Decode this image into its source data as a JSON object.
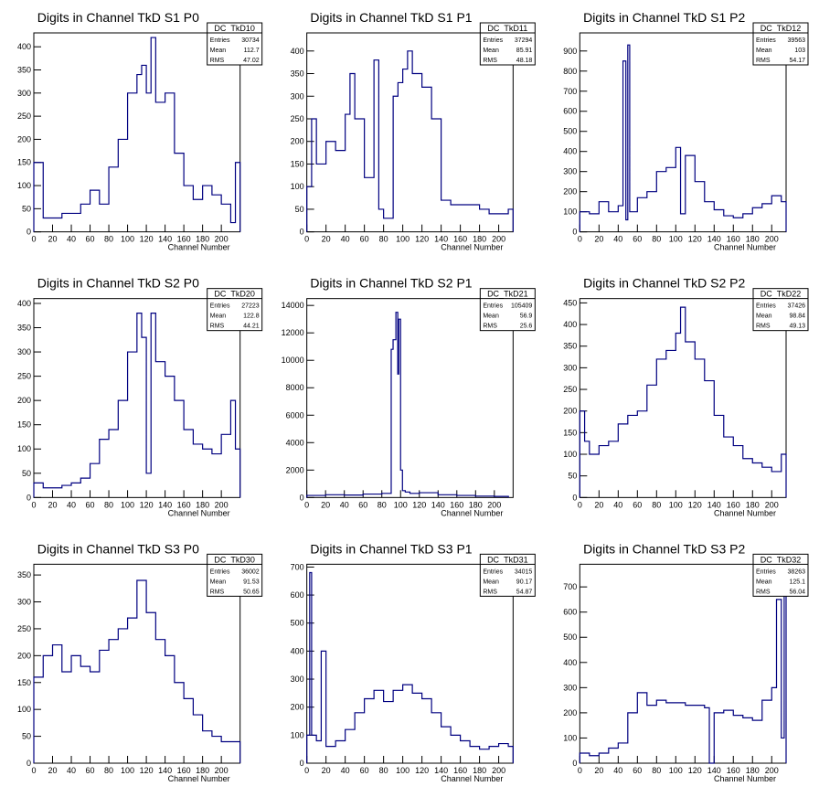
{
  "chart_data": [
    {
      "type": "histogram",
      "title": "Digits in Channel TkD S1 P0",
      "xlabel": "Channel Number",
      "ylabel": "",
      "xlim": [
        0,
        220
      ],
      "ylim": [
        0,
        430
      ],
      "xticks": [
        0,
        20,
        40,
        60,
        80,
        100,
        120,
        140,
        160,
        180,
        200
      ],
      "yticks": [
        0,
        50,
        100,
        150,
        200,
        250,
        300,
        350,
        400
      ],
      "stats": {
        "name": "DC_TkD10",
        "entries": "30734",
        "mean": "112.7",
        "rms": "47.02"
      },
      "x": [
        0,
        10,
        20,
        30,
        40,
        50,
        60,
        70,
        80,
        90,
        100,
        110,
        115,
        120,
        125,
        130,
        140,
        150,
        160,
        170,
        180,
        190,
        200,
        210,
        215,
        220
      ],
      "y": [
        150,
        30,
        30,
        40,
        40,
        60,
        90,
        60,
        140,
        200,
        300,
        340,
        360,
        300,
        420,
        280,
        300,
        170,
        100,
        70,
        100,
        80,
        60,
        20,
        150,
        0
      ]
    },
    {
      "type": "histogram",
      "title": "Digits in Channel TkD S1 P1",
      "xlabel": "Channel Number",
      "ylabel": "",
      "xlim": [
        0,
        215
      ],
      "ylim": [
        0,
        440
      ],
      "xticks": [
        0,
        20,
        40,
        60,
        80,
        100,
        120,
        140,
        160,
        180,
        200
      ],
      "yticks": [
        0,
        50,
        100,
        150,
        200,
        250,
        300,
        350,
        400
      ],
      "stats": {
        "name": "DC_TkD11",
        "entries": "37294",
        "mean": "85.91",
        "rms": "48.18"
      },
      "x": [
        0,
        5,
        10,
        20,
        30,
        40,
        45,
        50,
        60,
        70,
        75,
        80,
        90,
        95,
        100,
        105,
        110,
        120,
        130,
        140,
        150,
        160,
        170,
        180,
        190,
        200,
        210,
        215
      ],
      "y": [
        100,
        250,
        150,
        200,
        180,
        260,
        350,
        250,
        120,
        380,
        50,
        30,
        300,
        330,
        360,
        400,
        350,
        320,
        250,
        70,
        60,
        60,
        60,
        50,
        40,
        40,
        50,
        0
      ]
    },
    {
      "type": "histogram",
      "title": "Digits in Channel TkD S1 P2",
      "xlabel": "Channel Number",
      "ylabel": "",
      "xlim": [
        0,
        215
      ],
      "ylim": [
        0,
        990
      ],
      "xticks": [
        0,
        20,
        40,
        60,
        80,
        100,
        120,
        140,
        160,
        180,
        200
      ],
      "yticks": [
        0,
        100,
        200,
        300,
        400,
        500,
        600,
        700,
        800,
        900
      ],
      "stats": {
        "name": "DC_TkD12",
        "entries": "39563",
        "mean": "103",
        "rms": "54.17"
      },
      "x": [
        0,
        10,
        20,
        30,
        40,
        45,
        48,
        50,
        52,
        55,
        60,
        70,
        80,
        90,
        100,
        105,
        110,
        120,
        130,
        140,
        150,
        160,
        170,
        180,
        190,
        200,
        210,
        215
      ],
      "y": [
        100,
        90,
        150,
        100,
        130,
        850,
        60,
        930,
        100,
        100,
        170,
        200,
        300,
        320,
        420,
        90,
        380,
        250,
        150,
        110,
        80,
        70,
        90,
        120,
        140,
        180,
        150,
        0
      ]
    },
    {
      "type": "histogram",
      "title": "Digits in Channel TkD S2 P0",
      "xlabel": "Channel Number",
      "ylabel": "",
      "xlim": [
        0,
        220
      ],
      "ylim": [
        0,
        410
      ],
      "xticks": [
        0,
        20,
        40,
        60,
        80,
        100,
        120,
        140,
        160,
        180,
        200
      ],
      "yticks": [
        0,
        50,
        100,
        150,
        200,
        250,
        300,
        350,
        400
      ],
      "stats": {
        "name": "DC_TkD20",
        "entries": "27223",
        "mean": "122.8",
        "rms": "44.21"
      },
      "x": [
        0,
        10,
        20,
        30,
        40,
        50,
        60,
        70,
        80,
        90,
        100,
        110,
        115,
        120,
        125,
        130,
        140,
        150,
        160,
        170,
        180,
        190,
        200,
        210,
        215,
        220
      ],
      "y": [
        30,
        20,
        20,
        25,
        30,
        40,
        70,
        120,
        140,
        200,
        300,
        380,
        330,
        50,
        380,
        280,
        250,
        200,
        140,
        110,
        100,
        90,
        130,
        200,
        100,
        0
      ]
    },
    {
      "type": "histogram",
      "title": "Digits in Channel TkD S2 P1",
      "xlabel": "Channel Number",
      "ylabel": "",
      "xlim": [
        0,
        220
      ],
      "ylim": [
        0,
        14500
      ],
      "xticks": [
        0,
        20,
        40,
        60,
        80,
        100,
        120,
        140,
        160,
        180,
        200
      ],
      "yticks": [
        0,
        2000,
        4000,
        6000,
        8000,
        10000,
        12000,
        14000
      ],
      "stats": {
        "name": "DC_TkD21",
        "entries": "105409",
        "mean": "56.9",
        "rms": "25.6"
      },
      "x": [
        0,
        20,
        40,
        60,
        80,
        85,
        90,
        92,
        95,
        97,
        98,
        100,
        102,
        105,
        110,
        120,
        140,
        160,
        180,
        200,
        215
      ],
      "y": [
        150,
        200,
        180,
        250,
        300,
        300,
        10800,
        11500,
        13500,
        9000,
        13000,
        2000,
        500,
        400,
        300,
        350,
        200,
        150,
        100,
        80,
        0
      ]
    },
    {
      "type": "histogram",
      "title": "Digits in Channel TkD S2 P2",
      "xlabel": "Channel Number",
      "ylabel": "",
      "xlim": [
        0,
        215
      ],
      "ylim": [
        0,
        460
      ],
      "xticks": [
        0,
        20,
        40,
        60,
        80,
        100,
        120,
        140,
        160,
        180,
        200
      ],
      "yticks": [
        0,
        50,
        100,
        150,
        200,
        250,
        300,
        350,
        400,
        450
      ],
      "stats": {
        "name": "DC_TkD22",
        "entries": "37426",
        "mean": "98.84",
        "rms": "49.13"
      },
      "x": [
        0,
        5,
        10,
        20,
        30,
        40,
        50,
        60,
        70,
        80,
        90,
        100,
        105,
        110,
        120,
        130,
        140,
        150,
        160,
        170,
        180,
        190,
        200,
        210,
        215
      ],
      "y": [
        200,
        130,
        100,
        120,
        130,
        170,
        190,
        200,
        260,
        320,
        340,
        380,
        440,
        360,
        320,
        270,
        190,
        140,
        120,
        90,
        80,
        70,
        60,
        100,
        0
      ]
    },
    {
      "type": "histogram",
      "title": "Digits in Channel TkD S3 P0",
      "xlabel": "Channel Number",
      "ylabel": "",
      "xlim": [
        0,
        220
      ],
      "ylim": [
        0,
        370
      ],
      "xticks": [
        0,
        20,
        40,
        60,
        80,
        100,
        120,
        140,
        160,
        180,
        200
      ],
      "yticks": [
        0,
        50,
        100,
        150,
        200,
        250,
        300,
        350
      ],
      "stats": {
        "name": "DC_TkD30",
        "entries": "36002",
        "mean": "91.53",
        "rms": "50.65"
      },
      "x": [
        0,
        10,
        20,
        30,
        40,
        50,
        60,
        70,
        80,
        90,
        100,
        110,
        120,
        130,
        140,
        150,
        160,
        170,
        180,
        190,
        200,
        210,
        220
      ],
      "y": [
        160,
        200,
        220,
        170,
        200,
        180,
        170,
        210,
        230,
        250,
        270,
        340,
        280,
        230,
        200,
        150,
        120,
        90,
        60,
        50,
        40,
        40,
        0
      ]
    },
    {
      "type": "histogram",
      "title": "Digits in Channel TkD S3 P1",
      "xlabel": "Channel Number",
      "ylabel": "",
      "xlim": [
        0,
        215
      ],
      "ylim": [
        0,
        710
      ],
      "xticks": [
        0,
        20,
        40,
        60,
        80,
        100,
        120,
        140,
        160,
        180,
        200
      ],
      "yticks": [
        0,
        100,
        200,
        300,
        400,
        500,
        600,
        700
      ],
      "stats": {
        "name": "DC_TkD31",
        "entries": "34015",
        "mean": "90.17",
        "rms": "54.87"
      },
      "x": [
        0,
        3,
        5,
        10,
        15,
        20,
        30,
        40,
        50,
        60,
        70,
        80,
        90,
        100,
        110,
        120,
        130,
        140,
        150,
        160,
        170,
        180,
        190,
        200,
        210,
        215
      ],
      "y": [
        100,
        680,
        100,
        80,
        400,
        60,
        80,
        120,
        180,
        230,
        260,
        220,
        260,
        280,
        250,
        230,
        180,
        130,
        100,
        80,
        60,
        50,
        60,
        70,
        60,
        0
      ]
    },
    {
      "type": "histogram",
      "title": "Digits in Channel TkD S3 P2",
      "xlabel": "Channel Number",
      "ylabel": "",
      "xlim": [
        0,
        215
      ],
      "ylim": [
        0,
        790
      ],
      "xticks": [
        0,
        20,
        40,
        60,
        80,
        100,
        120,
        140,
        160,
        180,
        200
      ],
      "yticks": [
        0,
        100,
        200,
        300,
        400,
        500,
        600,
        700
      ],
      "stats": {
        "name": "DC_TkD32",
        "entries": "38263",
        "mean": "125.1",
        "rms": "56.04"
      },
      "x": [
        0,
        10,
        20,
        30,
        40,
        50,
        60,
        70,
        80,
        90,
        100,
        110,
        120,
        130,
        135,
        140,
        150,
        160,
        170,
        180,
        190,
        200,
        205,
        210,
        213,
        215
      ],
      "y": [
        40,
        30,
        40,
        60,
        80,
        200,
        280,
        230,
        250,
        240,
        240,
        230,
        230,
        220,
        0,
        200,
        210,
        190,
        180,
        170,
        250,
        300,
        650,
        100,
        780,
        0
      ]
    }
  ]
}
